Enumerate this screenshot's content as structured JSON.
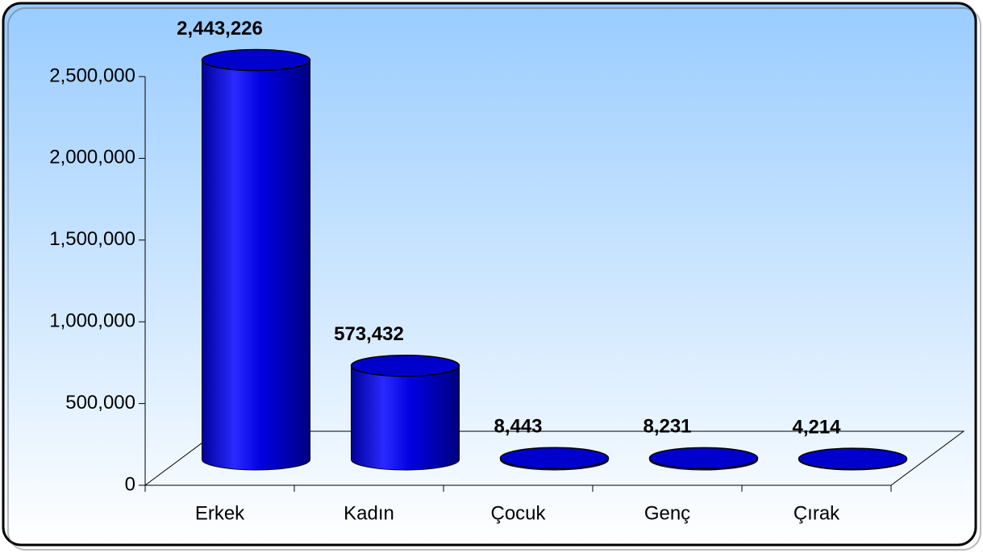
{
  "chart_data": {
    "type": "bar3d",
    "categories": [
      "Erkek",
      "Kadın",
      "Çocuk",
      "Genç",
      "Çırak"
    ],
    "values": [
      2443226,
      573432,
      8443,
      8231,
      4214
    ],
    "value_labels": [
      "2,443,226",
      "573,432",
      "8,443",
      "8,231",
      "4,214"
    ],
    "color": "#0000ff",
    "ylim": [
      0,
      2500000
    ],
    "yticks": [
      0,
      {
        "value": 500000,
        "label": "500,000"
      },
      {
        "value": 1000000,
        "label": "1,000,000"
      },
      {
        "value": 1500000,
        "label": "1,500,000"
      },
      {
        "value": 2000000,
        "label": "2,000,000"
      },
      {
        "value": 2500000,
        "label": "2,500,000"
      }
    ],
    "grid": false
  }
}
